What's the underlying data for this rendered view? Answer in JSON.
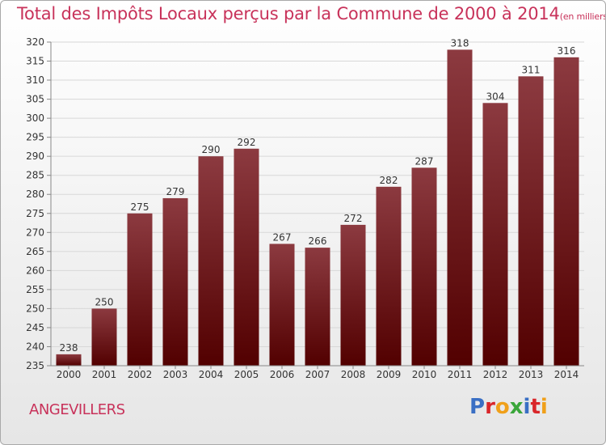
{
  "header": {
    "title": "Total des Impôts Locaux perçus par la Commune de 2000 à 2014",
    "unit": "(en milliers d'€)"
  },
  "commune": "ANGEVILLERS",
  "brand": {
    "name": "Proxiti",
    "colors": [
      "#3a6fc4",
      "#d9262a",
      "#f0a01a",
      "#3aa63a",
      "#3a6fc4",
      "#d9262a",
      "#f0a01a"
    ]
  },
  "colors": {
    "bar_top": "#8c3a40",
    "bar_bottom": "#520000",
    "accent": "#c8325a"
  },
  "chart_data": {
    "type": "bar",
    "title": "Total des Impôts Locaux perçus par la Commune de 2000 à 2014",
    "xlabel": "",
    "ylabel": "",
    "categories": [
      "2000",
      "2001",
      "2002",
      "2003",
      "2004",
      "2005",
      "2006",
      "2007",
      "2008",
      "2009",
      "2010",
      "2011",
      "2012",
      "2013",
      "2014"
    ],
    "values": [
      238,
      250,
      275,
      279,
      290,
      292,
      267,
      266,
      272,
      282,
      287,
      318,
      304,
      311,
      316
    ],
    "ylim": [
      235,
      320
    ],
    "yticks": [
      235,
      240,
      245,
      250,
      255,
      260,
      265,
      270,
      275,
      280,
      285,
      290,
      295,
      300,
      305,
      310,
      315,
      320
    ],
    "grid": true,
    "data_labels": true
  }
}
